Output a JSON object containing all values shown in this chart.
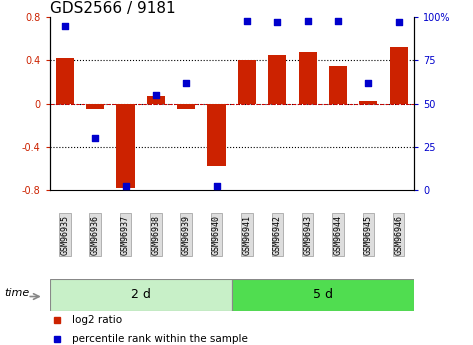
{
  "title": "GDS2566 / 9181",
  "samples": [
    "GSM96935",
    "GSM96936",
    "GSM96937",
    "GSM96938",
    "GSM96939",
    "GSM96940",
    "GSM96941",
    "GSM96942",
    "GSM96943",
    "GSM96944",
    "GSM96945",
    "GSM96946"
  ],
  "log2_ratio": [
    0.42,
    -0.05,
    -0.78,
    0.07,
    -0.05,
    -0.58,
    0.4,
    0.45,
    0.48,
    0.35,
    0.02,
    0.52
  ],
  "percentile_rank": [
    95,
    30,
    2,
    55,
    62,
    2,
    98,
    97,
    98,
    98,
    62,
    97
  ],
  "groups": [
    {
      "label": "2 d",
      "start": 0,
      "end": 6,
      "color": "#C8F0C8"
    },
    {
      "label": "5 d",
      "start": 6,
      "end": 12,
      "color": "#50DD50"
    }
  ],
  "ylim_left": [
    -0.8,
    0.8
  ],
  "ylim_right": [
    0,
    100
  ],
  "yticks_left": [
    -0.8,
    -0.4,
    0.0,
    0.4,
    0.8
  ],
  "yticks_right": [
    0,
    25,
    50,
    75,
    100
  ],
  "ytick_labels_right": [
    "0",
    "25",
    "50",
    "75",
    "100%"
  ],
  "bar_color": "#CC2200",
  "dot_color": "#0000CC",
  "hline_color": "#CC0000",
  "bg_color": "#FFFFFF",
  "legend_items": [
    {
      "label": "log2 ratio",
      "color": "#CC2200"
    },
    {
      "label": "percentile rank within the sample",
      "color": "#0000CC"
    }
  ],
  "time_label": "time",
  "title_fontsize": 11,
  "tick_fontsize": 7,
  "label_fontsize": 6,
  "legend_fontsize": 7.5,
  "group_fontsize": 9
}
